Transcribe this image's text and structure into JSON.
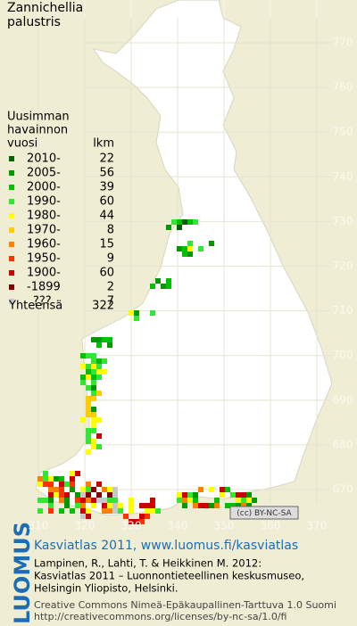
{
  "title": [
    "Zannichellia",
    "palustris"
  ],
  "legend": {
    "heading": [
      "Uusimman",
      "havainnon",
      "vuosi"
    ],
    "count_heading": "lkm",
    "rows": [
      {
        "label": "2010-",
        "count": 22,
        "color": "#006400"
      },
      {
        "label": "2005-",
        "count": 56,
        "color": "#009a00"
      },
      {
        "label": "2000-",
        "count": 39,
        "color": "#00c000"
      },
      {
        "label": "1990-",
        "count": 60,
        "color": "#33e633"
      },
      {
        "label": "1980-",
        "count": 44,
        "color": "#ffff00"
      },
      {
        "label": "1970-",
        "count": 8,
        "color": "#ffcc00"
      },
      {
        "label": "1960-",
        "count": 15,
        "color": "#ff8000"
      },
      {
        "label": "1950-",
        "count": 9,
        "color": "#ff3300"
      },
      {
        "label": "1900-",
        "count": 60,
        "color": "#cc0000"
      },
      {
        "label": "-1899",
        "count": 2,
        "color": "#800000"
      },
      {
        "label": "???",
        "count": 7,
        "color": "#c8c8c8"
      }
    ],
    "total_label": "Yhteensä",
    "total": 322
  },
  "map": {
    "yticks": [
      770,
      760,
      750,
      740,
      730,
      720,
      710,
      700,
      690,
      680,
      670
    ],
    "xticks": [
      310,
      320,
      330,
      340,
      350,
      360,
      370
    ]
  },
  "footer": {
    "logo": "LUOMUS",
    "badge": "(cc) BY-NC-SA",
    "headline": "Kasviatlas 2011, www.luomus.fi/kasviatlas",
    "citation": [
      "Lampinen, R., Lahti, T. & Heikkinen M. 2012:",
      "Kasviatlas 2011 – Luonnontieteellinen keskusmuseo,",
      "Helsingin Yliopisto, Helsinki."
    ],
    "license": [
      "Creative Commons Nimeä-Epäkaupallinen-Tarttuva 1.0 Suomi",
      "http://creativecommons.org/licenses/by-nc-sa/1.0/fi"
    ]
  }
}
